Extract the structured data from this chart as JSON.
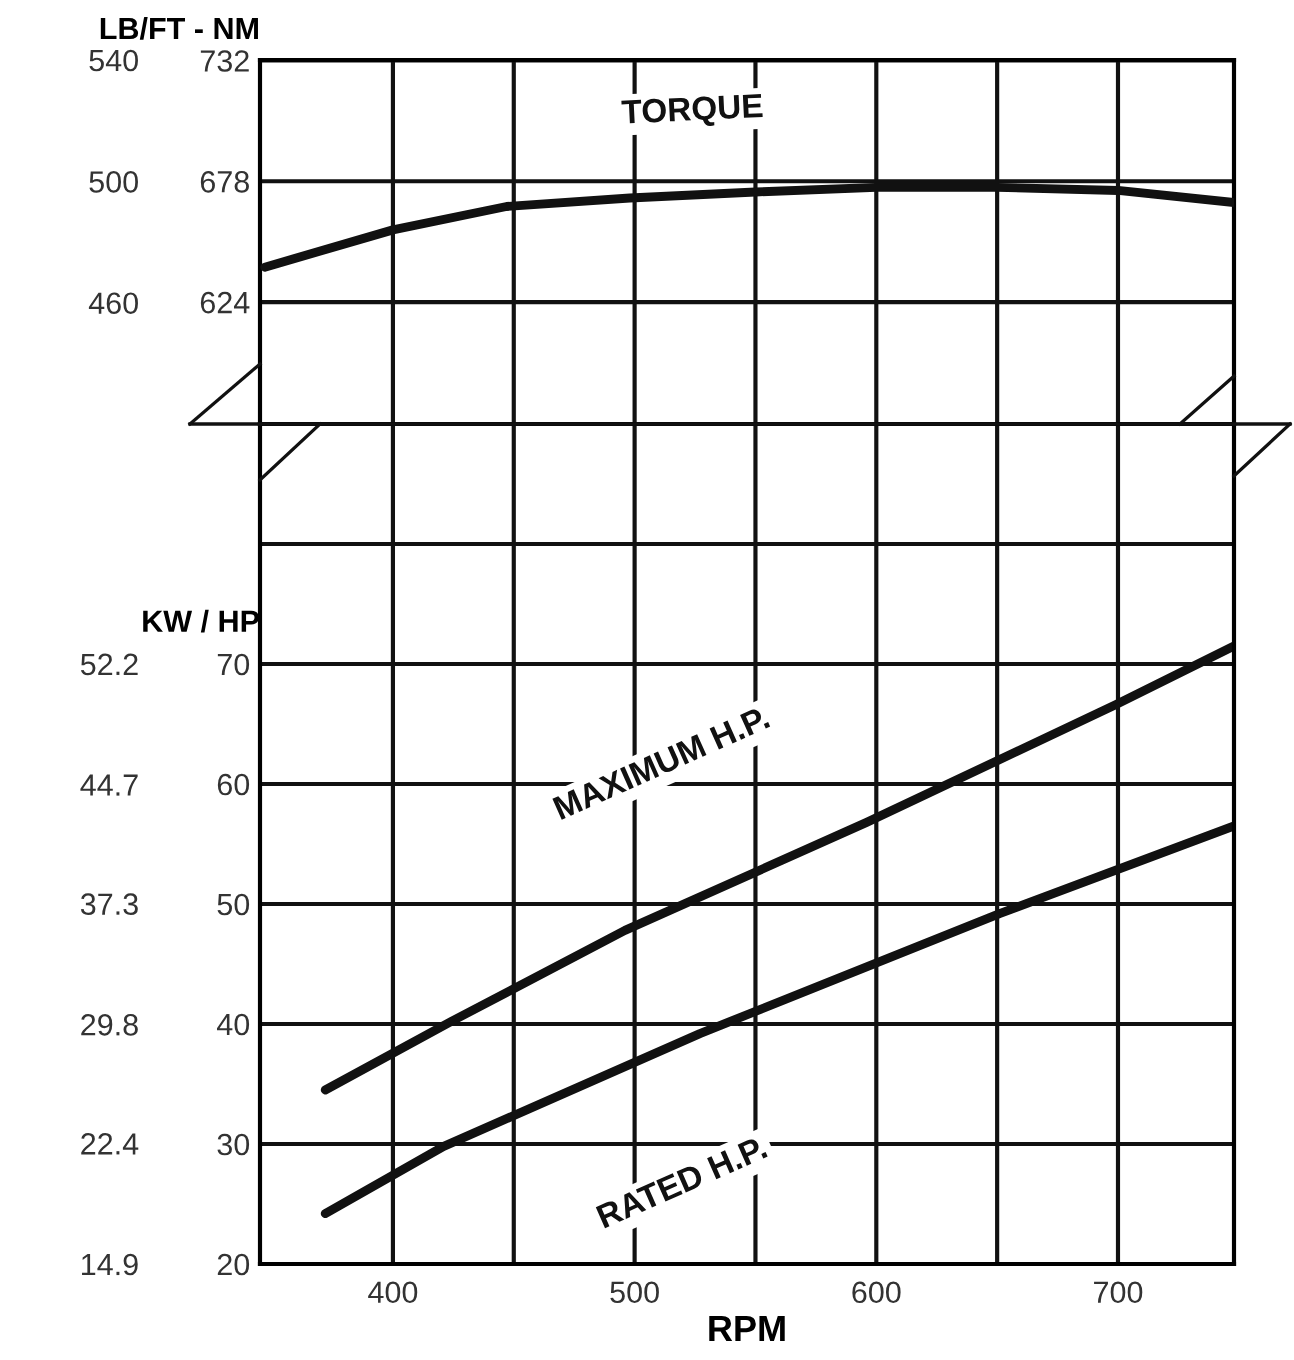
{
  "chart_data": [
    {
      "type": "line",
      "ylabel": "LB/FT - NM",
      "xlim": [
        345,
        748
      ],
      "xticks": [
        {
          "value": 400,
          "label": null
        },
        {
          "value": 450,
          "label": null
        },
        {
          "value": 500,
          "label": null
        },
        {
          "value": 550,
          "label": null
        },
        {
          "value": 600,
          "label": null
        },
        {
          "value": 650,
          "label": null
        },
        {
          "value": 700,
          "label": null
        }
      ],
      "ylim": [
        569.5,
        732.2
      ],
      "yticks": [
        624,
        678,
        732
      ],
      "y2lim": [
        420,
        540
      ],
      "y2ticks": [
        460,
        500,
        540
      ],
      "grid": true,
      "tick_labels": "y",
      "marker": "none",
      "line_style": "solid",
      "series": [
        {
          "name": "TORQUE",
          "color": "#111111",
          "axis": "y2",
          "x": [
            347,
            400,
            447,
            498,
            550,
            600,
            650,
            700,
            748
          ],
          "values": [
            471.7,
            484,
            491.7,
            494.5,
            496.5,
            498,
            498,
            497,
            493
          ]
        }
      ]
    },
    {
      "type": "line",
      "ylabel": "KW / HP",
      "xlabel": "RPM",
      "xlim": [
        345,
        748
      ],
      "xticks": [
        400,
        {
          "value": 450,
          "label": null
        },
        500,
        {
          "value": 550,
          "label": null
        },
        600,
        {
          "value": 650,
          "label": null
        },
        700
      ],
      "ylim": [
        20,
        90
      ],
      "yticks": [
        20,
        30,
        40,
        50,
        60,
        70,
        {
          "value": 80,
          "label": null
        }
      ],
      "y2lim": [
        14.9,
        67.11
      ],
      "y2ticks": [
        14.9,
        22.4,
        29.8,
        37.3,
        44.7,
        52.2
      ],
      "grid": true,
      "marker": "none",
      "line_style": "solid",
      "series": [
        {
          "name": "MAXIMUM H.P.",
          "color": "#111111",
          "x": [
            372,
            424,
            496,
            596,
            699,
            748
          ],
          "values": [
            34.5,
            40.2,
            47.8,
            56.8,
            66.6,
            71.5
          ]
        },
        {
          "name": "RATED H.P.",
          "color": "#111111",
          "x": [
            372,
            421,
            527,
            651,
            748
          ],
          "values": [
            24.2,
            29.8,
            39.2,
            49.2,
            56.5
          ]
        }
      ]
    }
  ]
}
